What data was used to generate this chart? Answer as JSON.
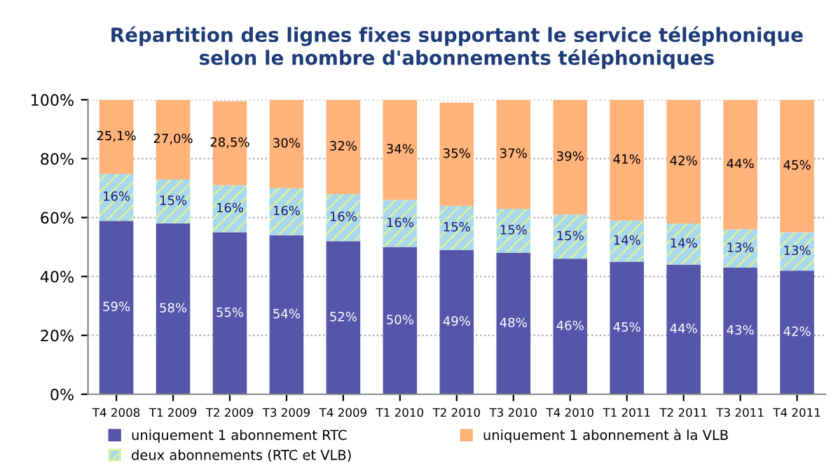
{
  "chart_data": {
    "type": "bar",
    "stacked": true,
    "title": "Répartition des lignes fixes supportant le service téléphonique\nselon le nombre d'abonnements téléphoniques",
    "categories": [
      "T4 2008",
      "T1 2009",
      "T2 2009",
      "T3 2009",
      "T4 2009",
      "T1 2010",
      "T2 2010",
      "T3 2010",
      "T4 2010",
      "T1 2011",
      "T2 2011",
      "T3 2011",
      "T4 2011"
    ],
    "series": [
      {
        "name": "uniquement 1 abonnement RTC",
        "color": "#5555aa",
        "values": [
          58.9,
          58,
          55,
          54,
          52,
          50,
          49,
          48,
          46,
          45,
          44,
          43,
          42
        ],
        "value_labels": [
          "59%",
          "58%",
          "55%",
          "54%",
          "52%",
          "50%",
          "49%",
          "48%",
          "46%",
          "45%",
          "44%",
          "43%",
          "42%"
        ]
      },
      {
        "name": "deux abonnements (RTC et VLB)",
        "color": "#a8d8ee",
        "values": [
          16,
          15,
          16,
          16,
          16,
          16,
          15,
          15,
          15,
          14,
          14,
          13,
          13
        ],
        "value_labels": [
          "16%",
          "15%",
          "16%",
          "16%",
          "16%",
          "16%",
          "15%",
          "15%",
          "15%",
          "14%",
          "14%",
          "13%",
          "13%"
        ]
      },
      {
        "name": "uniquement 1 abonnement à la VLB",
        "color": "#ffb27a",
        "values": [
          25.1,
          27.0,
          28.5,
          30,
          32,
          34,
          35,
          37,
          39,
          41,
          42,
          44,
          45
        ],
        "value_labels": [
          "25,1%",
          "27,0%",
          "28,5%",
          "30%",
          "32%",
          "34%",
          "35%",
          "37%",
          "39%",
          "41%",
          "42%",
          "44%",
          "45%"
        ]
      }
    ],
    "ylim": [
      0,
      100
    ],
    "yticks": [
      {
        "value": 0,
        "label": "0%"
      },
      {
        "value": 20,
        "label": "20%"
      },
      {
        "value": 40,
        "label": "40%"
      },
      {
        "value": 60,
        "label": "60%"
      },
      {
        "value": 80,
        "label": "80%"
      },
      {
        "value": 100,
        "label": "100%"
      }
    ],
    "grid": "y",
    "legend": "bottom"
  }
}
